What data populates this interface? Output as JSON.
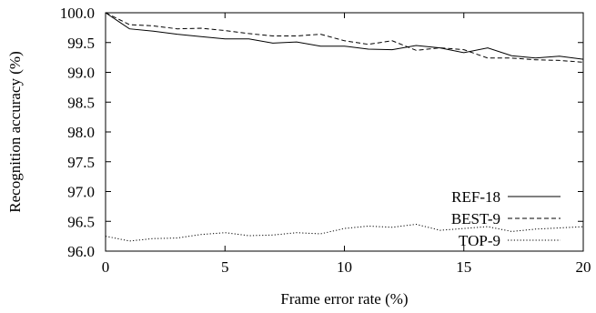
{
  "chart_data": {
    "type": "line",
    "title": "",
    "xlabel": "Frame error rate (%)",
    "ylabel": "Recognition accuracy (%)",
    "xlim": [
      0,
      20
    ],
    "ylim": [
      96.0,
      100.0
    ],
    "x_ticks": [
      "0",
      "5",
      "10",
      "15",
      "20"
    ],
    "y_ticks": [
      "96.0",
      "96.5",
      "97.0",
      "97.5",
      "98.0",
      "98.5",
      "99.0",
      "99.5",
      "100.0"
    ],
    "grid": false,
    "legend_position": "bottom-right",
    "x": [
      0,
      1,
      2,
      3,
      4,
      5,
      6,
      7,
      8,
      9,
      10,
      11,
      12,
      13,
      14,
      15,
      16,
      17,
      18,
      19,
      20
    ],
    "series": [
      {
        "name": "REF-18",
        "style": "solid",
        "values": [
          100.0,
          99.73,
          99.69,
          99.64,
          99.6,
          99.56,
          99.56,
          99.49,
          99.51,
          99.44,
          99.44,
          99.39,
          99.38,
          99.45,
          99.41,
          99.33,
          99.41,
          99.28,
          99.24,
          99.27,
          99.22
        ]
      },
      {
        "name": "BEST-9",
        "style": "dashed",
        "values": [
          100.0,
          99.8,
          99.78,
          99.73,
          99.74,
          99.7,
          99.65,
          99.61,
          99.61,
          99.64,
          99.53,
          99.47,
          99.53,
          99.37,
          99.41,
          99.38,
          99.24,
          99.24,
          99.21,
          99.2,
          99.17
        ]
      },
      {
        "name": "TOP-9",
        "style": "dotted",
        "values": [
          96.25,
          96.17,
          96.21,
          96.22,
          96.28,
          96.31,
          96.26,
          96.27,
          96.31,
          96.29,
          96.38,
          96.42,
          96.4,
          96.45,
          96.35,
          96.38,
          96.41,
          96.33,
          96.37,
          96.39,
          96.41
        ]
      }
    ]
  }
}
